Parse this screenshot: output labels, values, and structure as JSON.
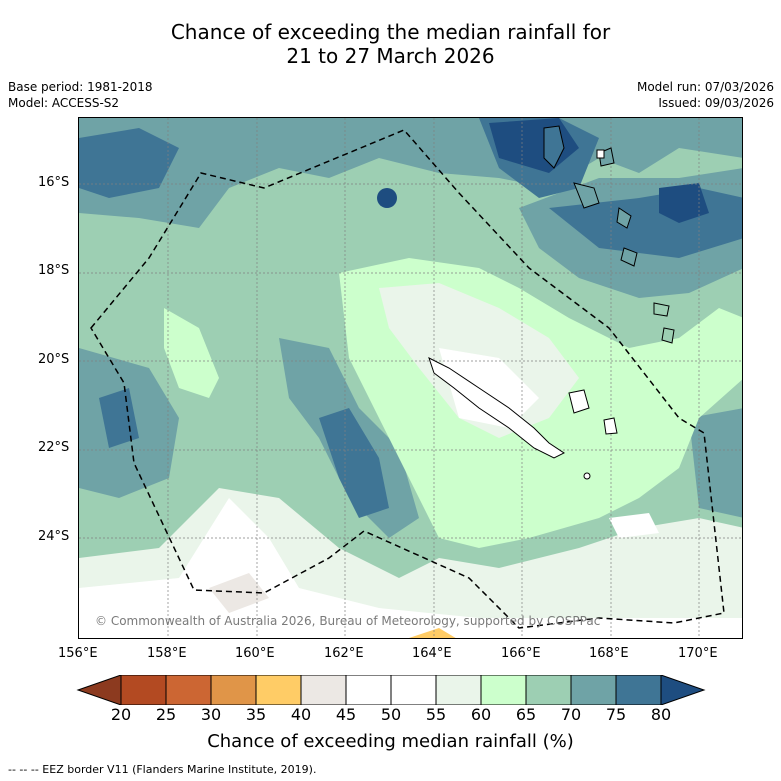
{
  "title": {
    "line1": "Chance of exceeding the median rainfall for",
    "line2": "21 to 27 March 2026"
  },
  "info": {
    "base_period": "Base period: 1981-2018",
    "model": "Model: ACCESS-S2",
    "model_run": "Model run: 07/03/2026",
    "issued": "Issued: 09/03/2026"
  },
  "axes": {
    "lat_ticks": [
      "16°S",
      "18°S",
      "20°S",
      "22°S",
      "24°S"
    ],
    "lon_ticks": [
      "156°E",
      "158°E",
      "160°E",
      "162°E",
      "164°E",
      "166°E",
      "168°E",
      "170°E"
    ]
  },
  "copyright": "© Commonwealth of Australia 2026, Bureau of Meteorology, supported by COSPPac",
  "colorbar": {
    "labels": [
      "20",
      "25",
      "30",
      "35",
      "40",
      "45",
      "50",
      "55",
      "60",
      "65",
      "70",
      "75",
      "80"
    ],
    "colors": [
      "#8c3a1f",
      "#b34a22",
      "#cc6633",
      "#e09548",
      "#ffcc66",
      "#ece8e4",
      "#ffffff",
      "#ffffff",
      "#eaf5ea",
      "#ccffcc",
      "#9dcfb3",
      "#6fa3a6",
      "#3f7595",
      "#1e4d80"
    ],
    "title": "Chance of exceeding median rainfall (%)"
  },
  "footnote": "--  --  -- EEZ border V11 (Flanders Marine Institute, 2019)."
}
